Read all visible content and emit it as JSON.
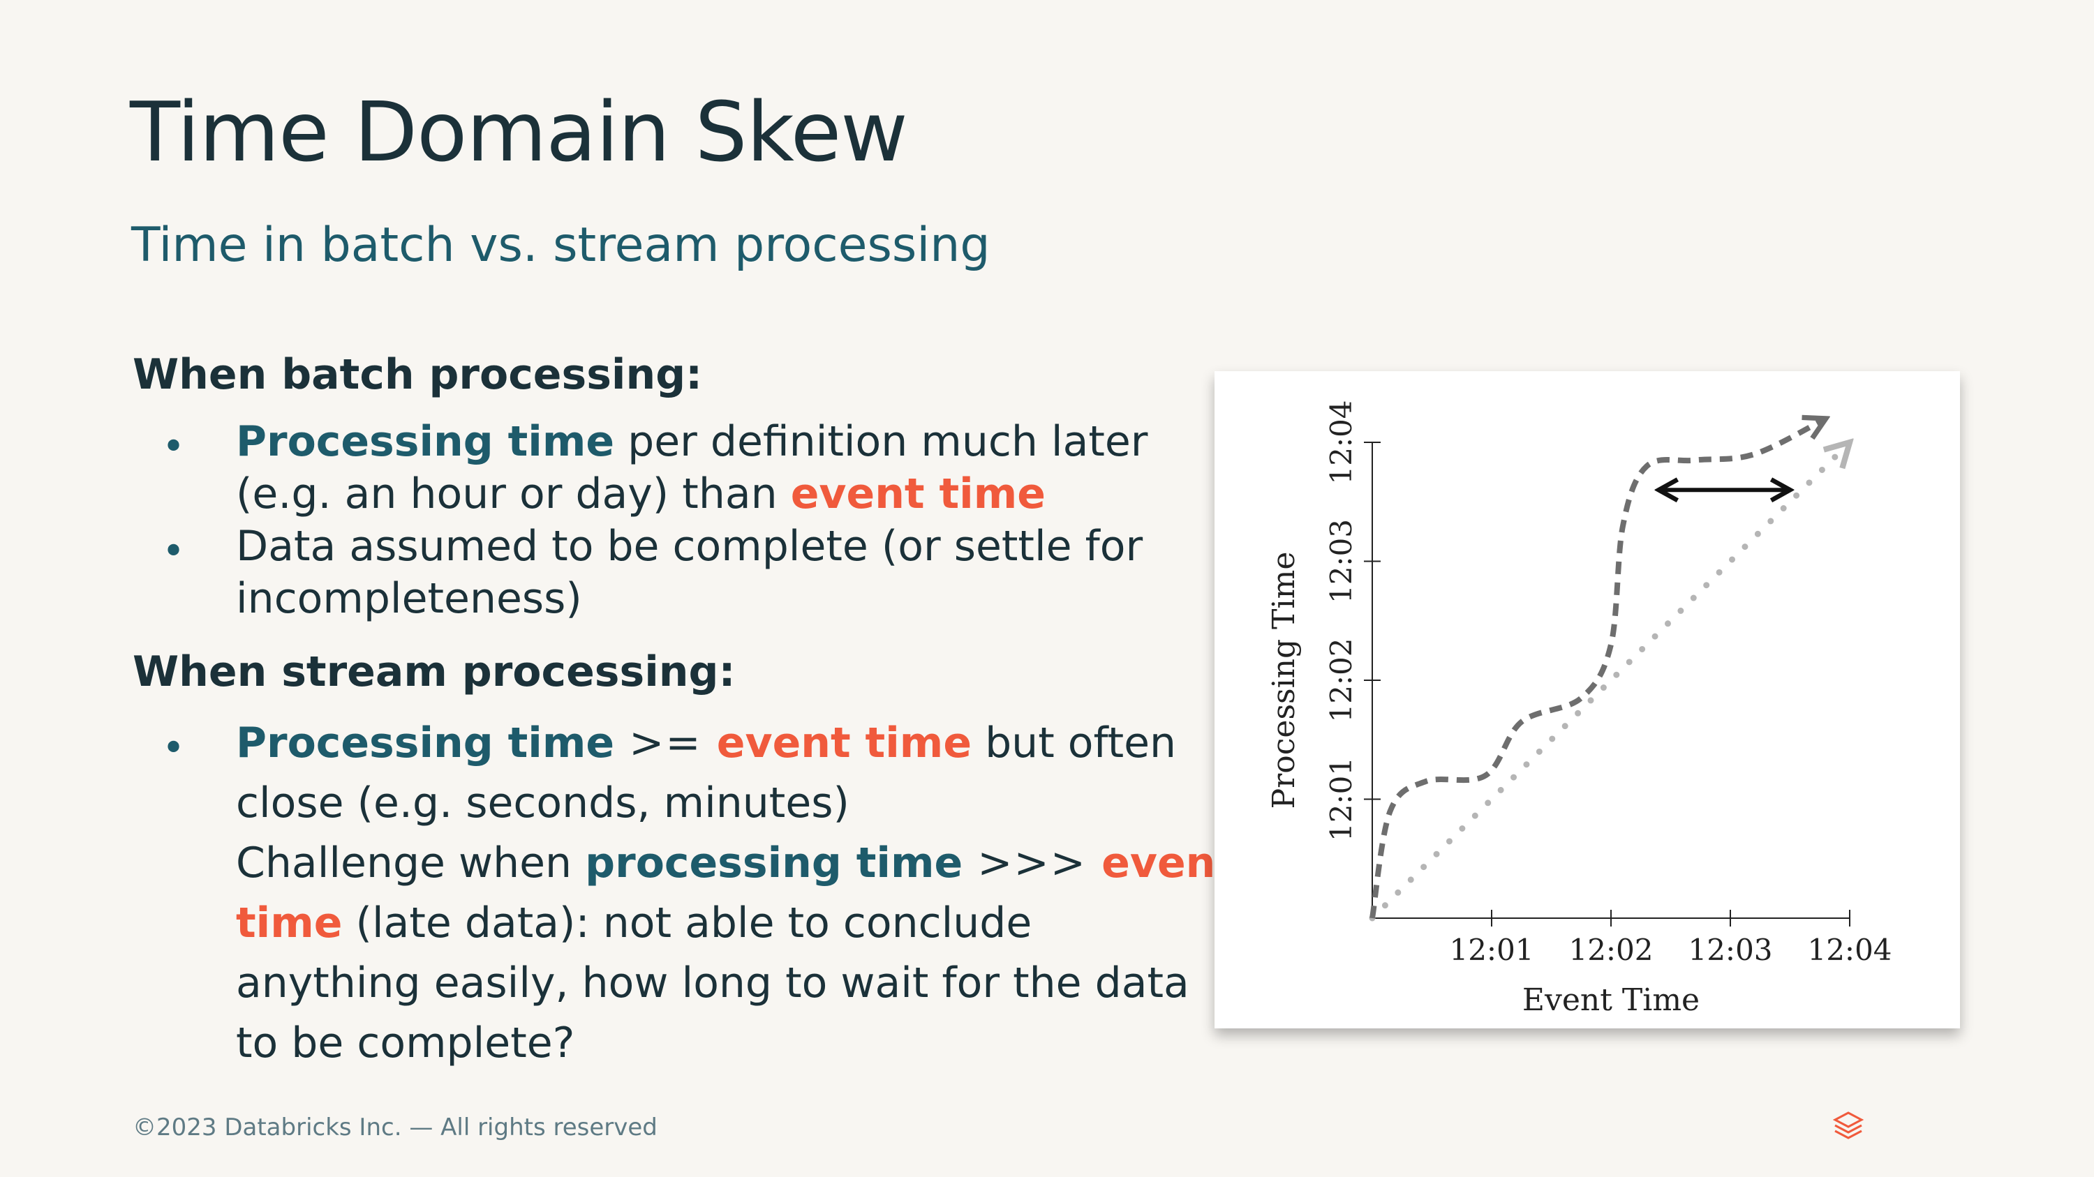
{
  "slide": {
    "title": "Time Domain Skew",
    "subtitle": "Time in batch vs. stream processing"
  },
  "batch": {
    "heading": "When batch processing:",
    "b1_part1": "Processing time",
    "b1_part2": " per definition much later",
    "b1_part3": "(e.g. an hour or day) than ",
    "b1_part4": "event time",
    "b2_line1": "Data assumed to be complete (or settle for",
    "b2_line2": "incompleteness)"
  },
  "stream": {
    "heading": "When stream processing:",
    "b1_part1": "Processing time",
    "b1_part2": " >= ",
    "b1_part3": "event time",
    "b1_part4": " but often",
    "b1_line2": "close (e.g. seconds, minutes)",
    "b2_part1": "Challenge when ",
    "b2_part2": "processing time",
    "b2_part3": " >>> ",
    "b2_part4": "event",
    "b2_part5": "time",
    "b2_part6": " (late data): not able to conclude",
    "b2_line3": "anything easily, how long to wait for the data",
    "b2_line4": "to be complete?"
  },
  "bullet_glyph": "•",
  "chart_data": {
    "type": "line",
    "xlabel": "Event Time",
    "ylabel": "Processing Time",
    "x_ticks": [
      "12:01",
      "12:02",
      "12:03",
      "12:04"
    ],
    "y_ticks": [
      "12:01",
      "12:02",
      "12:03",
      "12:04"
    ],
    "xlim": [
      0,
      4
    ],
    "ylim": [
      0,
      4
    ],
    "series": [
      {
        "style": "dotted",
        "color": "#B5B5B5",
        "points": [
          [
            0,
            0
          ],
          [
            4,
            4
          ]
        ]
      },
      {
        "style": "dashed",
        "color": "#6E6E6E",
        "points": [
          [
            0,
            0
          ],
          [
            0.15,
            0.9
          ],
          [
            0.45,
            1.15
          ],
          [
            0.95,
            1.2
          ],
          [
            1.25,
            1.65
          ],
          [
            1.75,
            1.85
          ],
          [
            2.0,
            2.3
          ],
          [
            2.1,
            3.3
          ],
          [
            2.3,
            3.8
          ],
          [
            2.7,
            3.85
          ],
          [
            3.2,
            3.9
          ],
          [
            3.8,
            4.2
          ]
        ]
      }
    ],
    "annotation": {
      "type": "double-arrow",
      "from": [
        2.4,
        3.6
      ],
      "to": [
        3.5,
        3.6
      ]
    }
  },
  "footer": {
    "copyright": "©2023 Databricks Inc. — All rights reserved"
  },
  "colors": {
    "background": "#F8F6F2",
    "title": "#1B3139",
    "teal": "#1E5B6B",
    "accent_red": "#F05A3C"
  },
  "icons": {
    "logo": "databricks-logo-icon"
  }
}
